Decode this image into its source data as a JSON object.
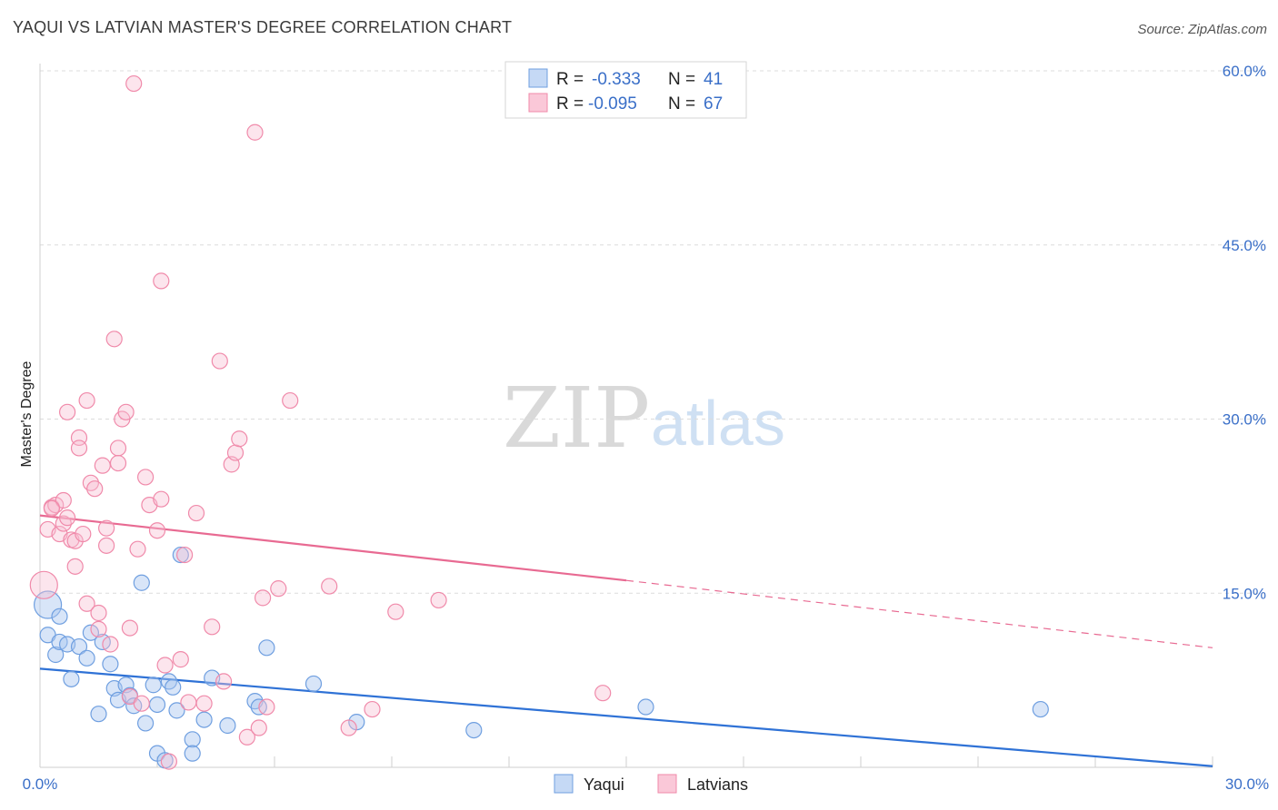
{
  "title": "YAQUI VS LATVIAN MASTER'S DEGREE CORRELATION CHART",
  "source": "Source: ZipAtlas.com",
  "watermark": {
    "zip": "ZIP",
    "atlas": "atlas"
  },
  "colors": {
    "yaqui": "#6f9fe0",
    "yaqui_line": "#2f72d6",
    "latvians": "#f08aaa",
    "latvians_line": "#e86a92",
    "tick_text": "#3a6fc8"
  },
  "legend": {
    "rows": [
      {
        "r_label": "R =",
        "r_value": "-0.333",
        "n_label": "N =",
        "n_value": "41"
      },
      {
        "r_label": "R =",
        "r_value": "-0.095",
        "n_label": "N =",
        "n_value": "67"
      }
    ]
  },
  "bottom_legend": [
    "Yaqui",
    "Latvians"
  ],
  "chart_data": {
    "type": "scatter",
    "ylabel": "Master's Degree",
    "xlim": [
      0,
      30
    ],
    "ylim": [
      0,
      60
    ],
    "x_tick_labels": [
      "0.0%",
      "30.0%"
    ],
    "y_ticks": [
      15,
      30,
      45,
      60
    ],
    "y_tick_labels": [
      "15.0%",
      "30.0%",
      "45.0%",
      "60.0%"
    ],
    "grid": true,
    "legend_position": "top-center",
    "series": [
      {
        "name": "Yaqui",
        "points": [
          [
            0.2,
            14.0
          ],
          [
            0.2,
            11.4
          ],
          [
            0.4,
            9.7
          ],
          [
            0.5,
            13.0
          ],
          [
            0.5,
            10.8
          ],
          [
            0.7,
            10.6
          ],
          [
            0.8,
            7.6
          ],
          [
            1.0,
            10.4
          ],
          [
            1.2,
            9.4
          ],
          [
            1.3,
            11.6
          ],
          [
            1.5,
            4.6
          ],
          [
            1.6,
            10.8
          ],
          [
            1.8,
            8.9
          ],
          [
            1.9,
            6.8
          ],
          [
            2.0,
            5.8
          ],
          [
            2.2,
            7.1
          ],
          [
            2.3,
            6.2
          ],
          [
            2.4,
            5.3
          ],
          [
            2.6,
            15.9
          ],
          [
            2.7,
            3.8
          ],
          [
            2.9,
            7.1
          ],
          [
            3.0,
            5.4
          ],
          [
            3.0,
            1.2
          ],
          [
            3.2,
            0.6
          ],
          [
            3.3,
            7.4
          ],
          [
            3.5,
            4.9
          ],
          [
            3.6,
            18.3
          ],
          [
            3.9,
            2.4
          ],
          [
            3.9,
            1.2
          ],
          [
            4.2,
            4.1
          ],
          [
            4.4,
            7.7
          ],
          [
            4.8,
            3.6
          ],
          [
            5.5,
            5.7
          ],
          [
            5.6,
            5.2
          ],
          [
            5.8,
            10.3
          ],
          [
            7.0,
            7.2
          ],
          [
            8.1,
            3.9
          ],
          [
            11.1,
            3.2
          ],
          [
            15.5,
            5.2
          ],
          [
            25.6,
            5.0
          ],
          [
            3.4,
            6.9
          ]
        ]
      },
      {
        "name": "Latvians",
        "points": [
          [
            0.1,
            15.7
          ],
          [
            0.2,
            20.5
          ],
          [
            0.3,
            22.4
          ],
          [
            0.4,
            22.6
          ],
          [
            0.5,
            20.1
          ],
          [
            0.6,
            21.0
          ],
          [
            0.6,
            23.0
          ],
          [
            0.7,
            21.5
          ],
          [
            0.7,
            30.6
          ],
          [
            0.8,
            19.6
          ],
          [
            0.9,
            19.5
          ],
          [
            0.9,
            17.3
          ],
          [
            1.0,
            28.4
          ],
          [
            1.0,
            27.5
          ],
          [
            1.1,
            20.1
          ],
          [
            1.2,
            31.6
          ],
          [
            1.2,
            14.1
          ],
          [
            1.3,
            24.5
          ],
          [
            1.4,
            24.0
          ],
          [
            1.5,
            13.3
          ],
          [
            1.5,
            11.9
          ],
          [
            1.6,
            26.0
          ],
          [
            1.7,
            20.6
          ],
          [
            1.7,
            19.1
          ],
          [
            1.8,
            10.6
          ],
          [
            1.9,
            36.9
          ],
          [
            2.0,
            27.5
          ],
          [
            2.0,
            26.2
          ],
          [
            2.1,
            30.0
          ],
          [
            2.2,
            30.6
          ],
          [
            2.3,
            12.0
          ],
          [
            2.3,
            6.1
          ],
          [
            2.4,
            58.9
          ],
          [
            2.5,
            18.8
          ],
          [
            2.6,
            5.5
          ],
          [
            2.7,
            25.0
          ],
          [
            2.8,
            22.6
          ],
          [
            3.0,
            20.4
          ],
          [
            3.1,
            23.1
          ],
          [
            3.1,
            41.9
          ],
          [
            3.2,
            8.8
          ],
          [
            3.3,
            0.5
          ],
          [
            3.6,
            9.3
          ],
          [
            3.7,
            18.3
          ],
          [
            3.8,
            5.6
          ],
          [
            4.0,
            21.9
          ],
          [
            4.2,
            5.5
          ],
          [
            4.4,
            12.1
          ],
          [
            4.6,
            35.0
          ],
          [
            4.7,
            7.4
          ],
          [
            4.9,
            26.1
          ],
          [
            5.0,
            27.1
          ],
          [
            5.1,
            28.3
          ],
          [
            5.3,
            2.6
          ],
          [
            5.5,
            54.7
          ],
          [
            5.6,
            3.4
          ],
          [
            5.7,
            14.6
          ],
          [
            5.8,
            5.2
          ],
          [
            6.1,
            15.4
          ],
          [
            6.4,
            31.6
          ],
          [
            7.4,
            15.6
          ],
          [
            7.9,
            3.4
          ],
          [
            8.5,
            5.0
          ],
          [
            9.1,
            13.4
          ],
          [
            10.2,
            14.4
          ],
          [
            14.4,
            6.4
          ],
          [
            0.3,
            22.3
          ]
        ]
      }
    ],
    "trendlines": [
      {
        "series": "Yaqui",
        "x": [
          0,
          30
        ],
        "y": [
          8.5,
          0.1
        ],
        "style": "solid"
      },
      {
        "series": "Latvians",
        "x": [
          0,
          15
        ],
        "y": [
          21.7,
          16.1
        ],
        "style": "solid"
      },
      {
        "series": "Latvians",
        "x": [
          15,
          30
        ],
        "y": [
          16.1,
          10.3
        ],
        "style": "dashed"
      }
    ]
  }
}
